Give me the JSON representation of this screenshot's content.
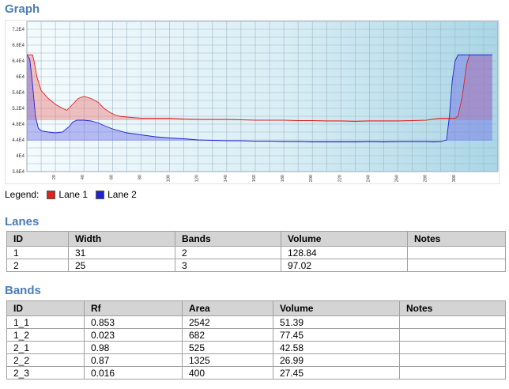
{
  "graph": {
    "title": "Graph",
    "legend_label": "Legend:",
    "legend": [
      {
        "name": "Lane 1",
        "color": "#dd2222"
      },
      {
        "name": "Lane 2",
        "color": "#2222cc"
      }
    ]
  },
  "chart_data": {
    "type": "line",
    "xlim": [
      0,
      330
    ],
    "ylim": [
      36000,
      74000
    ],
    "x_ticks": [
      "20",
      "40",
      "60",
      "80",
      "100",
      "120",
      "140",
      "160",
      "180",
      "200",
      "220",
      "240",
      "260",
      "280",
      "300"
    ],
    "y_ticks": [
      "3.6E4",
      "4E4",
      "4.4E4",
      "4.8E4",
      "5.2E4",
      "5.6E4",
      "6E4",
      "6.4E4",
      "6.8E4",
      "7.2E4"
    ],
    "grid": true,
    "series": [
      {
        "name": "Lane 1",
        "color": "#dd2222",
        "x": [
          0,
          4,
          5,
          7,
          10,
          15,
          20,
          25,
          28,
          32,
          36,
          40,
          45,
          50,
          54,
          58,
          62,
          65,
          70,
          80,
          90,
          100,
          110,
          120,
          130,
          140,
          150,
          160,
          170,
          180,
          190,
          200,
          210,
          220,
          230,
          240,
          250,
          260,
          270,
          280,
          285,
          290,
          295,
          300,
          302,
          305,
          308,
          310,
          314,
          320,
          326
        ],
        "y": [
          65500,
          65500,
          64000,
          60000,
          56500,
          54500,
          53000,
          52000,
          51500,
          53000,
          54500,
          55000,
          54500,
          53500,
          52000,
          51000,
          50300,
          50000,
          49800,
          49500,
          49500,
          49500,
          49300,
          49200,
          49200,
          49200,
          49100,
          49000,
          49000,
          49000,
          48900,
          48900,
          48800,
          48800,
          48700,
          48800,
          48800,
          48800,
          48900,
          49000,
          49300,
          49500,
          49500,
          49500,
          50000,
          55000,
          63000,
          65500,
          65500,
          65500,
          65500
        ]
      },
      {
        "name": "Lane 2",
        "color": "#2222cc",
        "x": [
          0,
          2,
          4,
          6,
          8,
          10,
          15,
          20,
          25,
          30,
          32,
          35,
          40,
          45,
          50,
          55,
          60,
          70,
          80,
          90,
          100,
          110,
          120,
          130,
          140,
          150,
          160,
          170,
          180,
          190,
          200,
          210,
          220,
          230,
          240,
          250,
          260,
          270,
          280,
          285,
          290,
          294,
          296,
          298,
          300,
          302,
          305,
          310,
          315,
          320,
          326
        ],
        "y": [
          65500,
          64500,
          58000,
          50000,
          47000,
          46300,
          46000,
          45800,
          46000,
          47500,
          48500,
          49000,
          49000,
          48800,
          48300,
          47500,
          46800,
          45800,
          45300,
          44800,
          44500,
          44300,
          44000,
          43900,
          43800,
          43800,
          43700,
          43700,
          43600,
          43600,
          43500,
          43500,
          43500,
          43500,
          43600,
          43500,
          43600,
          43600,
          43600,
          43500,
          43600,
          44000,
          50000,
          59000,
          64000,
          65500,
          65500,
          65500,
          65500,
          65500,
          65500
        ]
      }
    ]
  },
  "lanes": {
    "title": "Lanes",
    "columns": [
      "ID",
      "Width",
      "Bands",
      "Volume",
      "Notes"
    ],
    "rows": [
      [
        "1",
        "31",
        "2",
        "128.84",
        ""
      ],
      [
        "2",
        "25",
        "3",
        "97.02",
        ""
      ]
    ]
  },
  "bands": {
    "title": "Bands",
    "columns": [
      "ID",
      "Rf",
      "Area",
      "Volume",
      "Notes"
    ],
    "rows": [
      [
        "1_1",
        "0.853",
        "2542",
        "51.39",
        ""
      ],
      [
        "1_2",
        "0.023",
        "682",
        "77.45",
        ""
      ],
      [
        "2_1",
        "0.98",
        "525",
        "42.58",
        ""
      ],
      [
        "2_2",
        "0.87",
        "1325",
        "26.99",
        ""
      ],
      [
        "2_3",
        "0.016",
        "400",
        "27.45",
        ""
      ]
    ]
  }
}
